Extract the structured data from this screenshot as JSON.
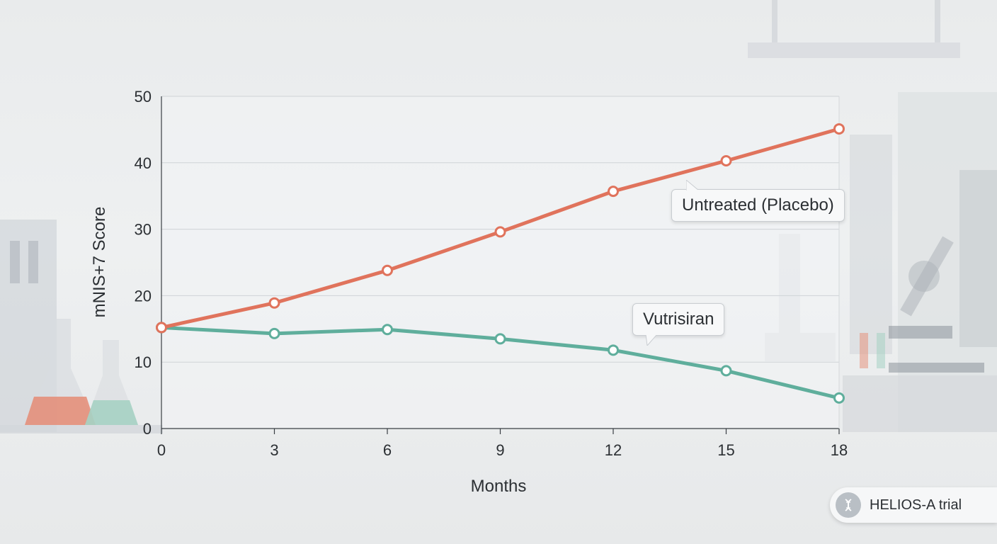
{
  "chart_data": {
    "type": "line",
    "title": "",
    "xlabel": "Months",
    "ylabel": "mNIS+7 Score",
    "x": [
      0,
      3,
      6,
      9,
      12,
      15,
      18
    ],
    "xlim": [
      0,
      18
    ],
    "ylim": [
      0,
      50
    ],
    "yticks": [
      0,
      10,
      20,
      30,
      40,
      50
    ],
    "grid": true,
    "series": [
      {
        "name": "Untreated (Placebo)",
        "color": "#e0735c",
        "values": [
          15.2,
          18.9,
          23.8,
          29.6,
          35.7,
          40.3,
          45.1
        ]
      },
      {
        "name": "Vutrisiran",
        "color": "#5fae9c",
        "values": [
          15.2,
          14.3,
          14.9,
          13.5,
          11.8,
          8.7,
          4.6
        ]
      }
    ]
  },
  "badge": {
    "label": "HELIOS-A trial",
    "icon": "dna-icon"
  }
}
